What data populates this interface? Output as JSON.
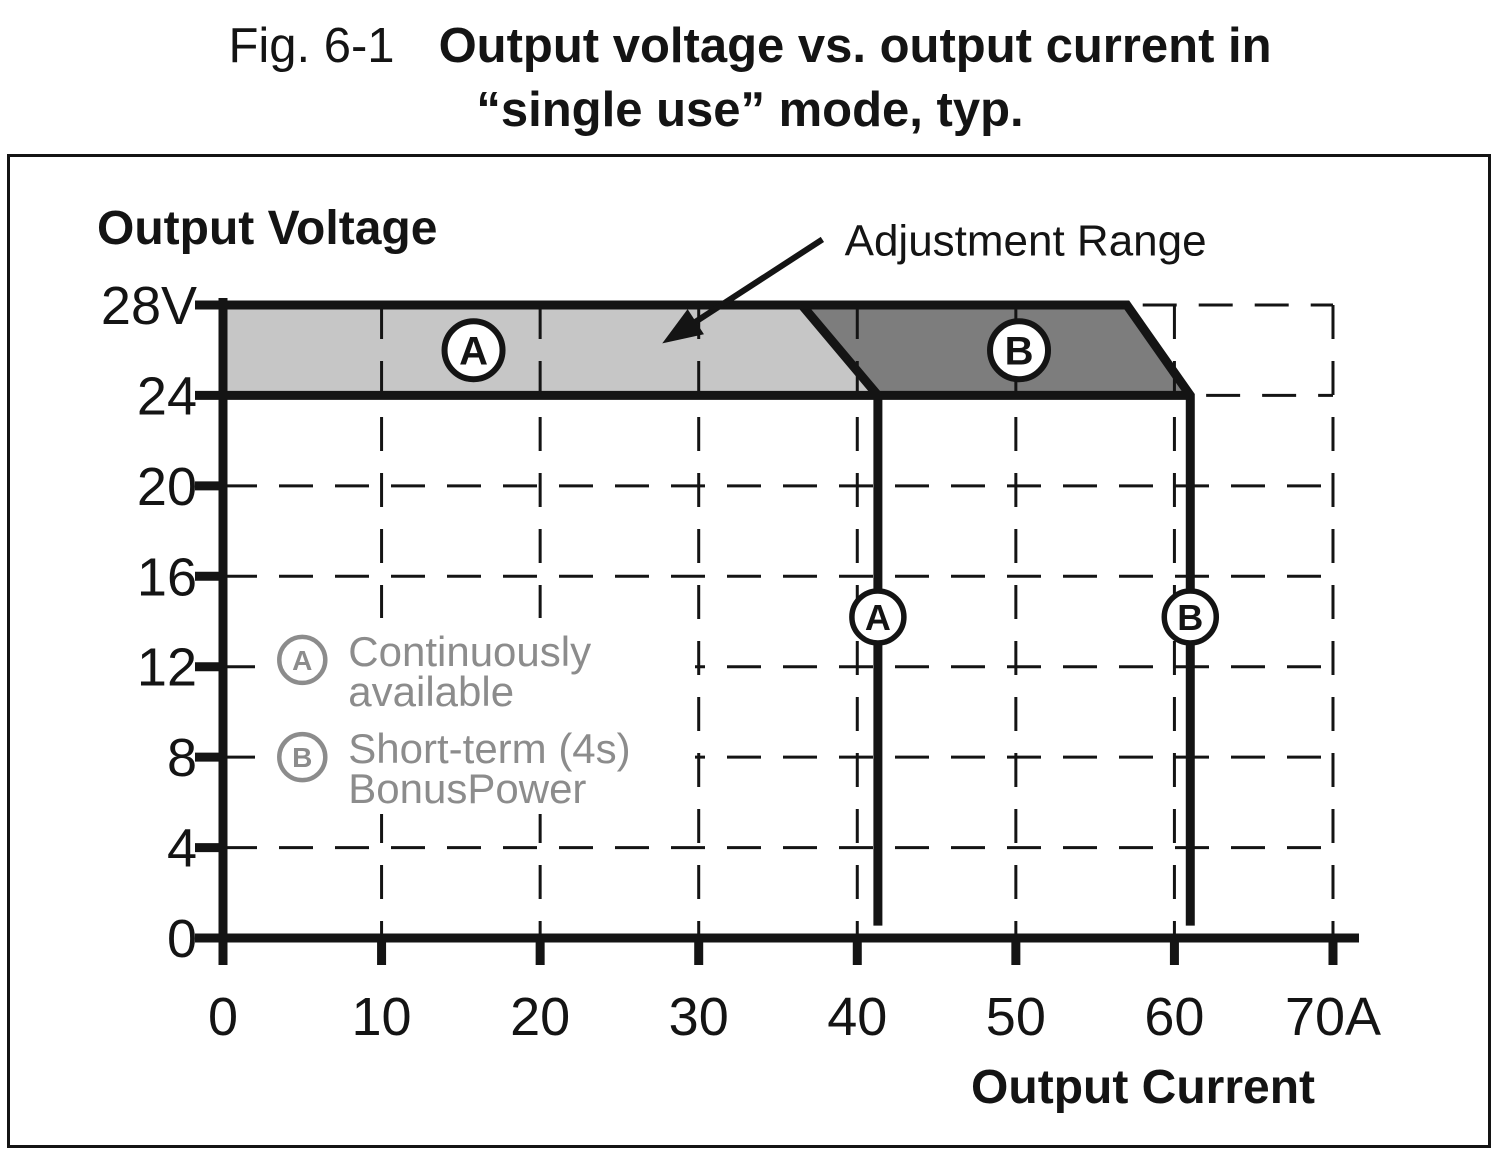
{
  "figure": {
    "label": "Fig. 6-1",
    "title_line1": "Output voltage vs. output current in",
    "title_line2": "“single use” mode, typ."
  },
  "chart_data": {
    "type": "area",
    "title": "Output voltage vs. output current in “single use” mode, typ.",
    "xlabel": "Output Current",
    "ylabel": "Output Voltage",
    "xlim": [
      0,
      70
    ],
    "ylim": [
      0,
      28
    ],
    "x_unit": "A",
    "y_unit": "V",
    "grid": "dashed",
    "x_ticks": [
      {
        "v": 0,
        "label": "0"
      },
      {
        "v": 10,
        "label": "10"
      },
      {
        "v": 20,
        "label": "20"
      },
      {
        "v": 30,
        "label": "30"
      },
      {
        "v": 40,
        "label": "40"
      },
      {
        "v": 50,
        "label": "50"
      },
      {
        "v": 60,
        "label": "60"
      },
      {
        "v": 70,
        "label": "70A"
      }
    ],
    "y_ticks": [
      {
        "v": 0,
        "label": "0"
      },
      {
        "v": 4,
        "label": "4"
      },
      {
        "v": 8,
        "label": "8"
      },
      {
        "v": 12,
        "label": "12"
      },
      {
        "v": 16,
        "label": "16"
      },
      {
        "v": 20,
        "label": "20"
      },
      {
        "v": 24,
        "label": "24"
      },
      {
        "v": 28,
        "label": "28V"
      }
    ],
    "h_grid_partial": [
      {
        "v": 24,
        "from": 62,
        "to": 70
      },
      {
        "v": 28,
        "from": 58,
        "to": 70
      }
    ],
    "regions": [
      {
        "id": "A",
        "label": "A",
        "points": [
          [
            0,
            28
          ],
          [
            36.5,
            28
          ],
          [
            41.3,
            24
          ],
          [
            0,
            24
          ]
        ],
        "fill": "#c6c6c6",
        "label_at": [
          15.8,
          26
        ]
      },
      {
        "id": "B",
        "label": "B",
        "points": [
          [
            36.5,
            28
          ],
          [
            57,
            28
          ],
          [
            61,
            24
          ],
          [
            41.3,
            24
          ]
        ],
        "fill": "#7d7d7d",
        "label_at": [
          50.2,
          26
        ]
      }
    ],
    "boundary_paths": [
      [
        [
          0,
          28
        ],
        [
          57,
          28
        ],
        [
          61,
          24
        ],
        [
          61,
          0.55
        ]
      ],
      [
        [
          36.5,
          28
        ],
        [
          41.3,
          24
        ],
        [
          41.3,
          0.55
        ]
      ],
      [
        [
          0,
          24
        ],
        [
          61,
          24
        ]
      ]
    ],
    "limit_lines": [
      {
        "label": "A",
        "x": 41.3,
        "label_at_v": 14.2
      },
      {
        "label": "B",
        "x": 61,
        "label_at_v": 14.2
      }
    ],
    "annotation": {
      "text": "Adjustment Range",
      "text_at": [
        39.2,
        30.2
      ],
      "arrow_from": [
        37.8,
        30.9
      ],
      "arrow_to": [
        27.7,
        26.3
      ]
    },
    "legend": [
      {
        "marker": "A",
        "lines": [
          "Continuously",
          "available"
        ],
        "at": [
          5,
          12.3
        ]
      },
      {
        "marker": "B",
        "lines": [
          "Short-term (4s)",
          "BonusPower"
        ],
        "at": [
          5,
          8
        ]
      }
    ],
    "colors": {
      "region_a": "#c6c6c6",
      "region_b": "#7d7d7d",
      "ink": "#141414",
      "legend_ink": "#8c8c8c"
    }
  }
}
